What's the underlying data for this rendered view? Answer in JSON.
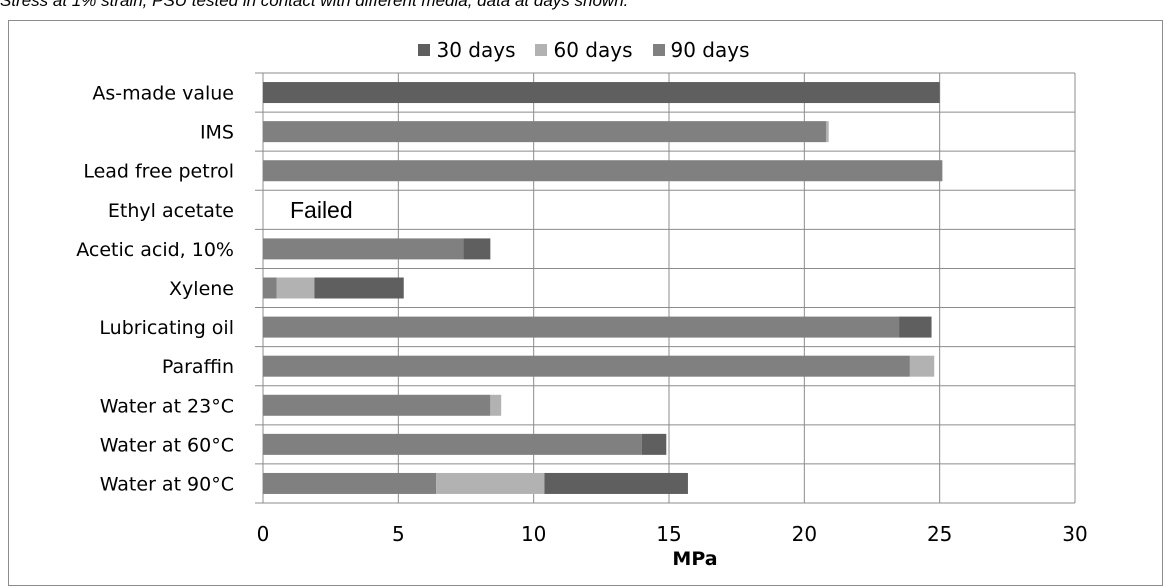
{
  "caption": "Stress at 1% strain, PSU tested in contact with different media; data at days shown.",
  "chart_data": {
    "type": "bar",
    "orientation": "horizontal",
    "stacked": true,
    "title": "",
    "xlabel": "MPa",
    "ylabel": "",
    "xlim": [
      0,
      30
    ],
    "xticks": [
      0,
      5,
      10,
      15,
      20,
      25,
      30
    ],
    "grid": true,
    "legend_position": "top",
    "categories": [
      "As-made value",
      "IMS",
      "Lead free petrol",
      "Ethyl acetate",
      "Acetic acid, 10%",
      "Xylene",
      "Lubricating oil",
      "Paraffin",
      "Water at 23°C",
      "Water at 60°C",
      "Water at 90°C"
    ],
    "series": [
      {
        "name": "90 days",
        "color": "#808080",
        "values": [
          0,
          20.8,
          25.1,
          0,
          7.4,
          0.5,
          23.5,
          23.9,
          8.4,
          14.0,
          6.4
        ]
      },
      {
        "name": "60 days",
        "color": "#b2b2b2",
        "values": [
          0,
          0.1,
          0,
          0,
          0,
          1.4,
          0,
          0.9,
          0.4,
          0,
          4.0
        ]
      },
      {
        "name": "30 days",
        "color": "#5f5f5f",
        "values": [
          25.0,
          0,
          0,
          0,
          1.0,
          3.3,
          1.2,
          0,
          0,
          0.9,
          5.3
        ]
      }
    ],
    "legend_order": [
      "30 days",
      "60 days",
      "90 days"
    ],
    "annotations": [
      {
        "category": "Ethyl acetate",
        "text": "Failed"
      }
    ]
  }
}
